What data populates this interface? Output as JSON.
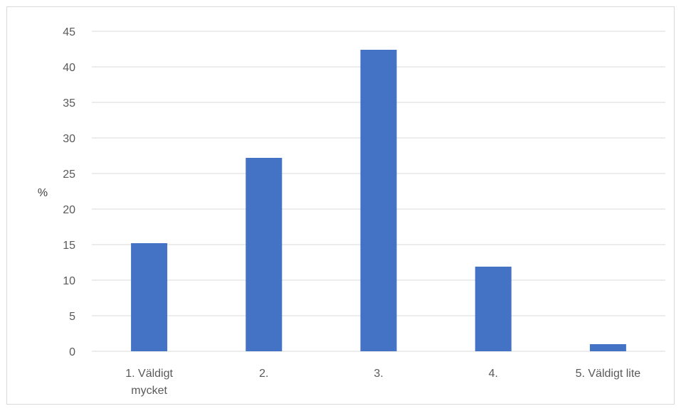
{
  "chart_data": {
    "type": "bar",
    "title": "",
    "xlabel": "",
    "ylabel": "%",
    "categories": [
      [
        "1. Väldigt",
        "mycket"
      ],
      [
        "2."
      ],
      [
        "3."
      ],
      [
        "4."
      ],
      [
        "5. Väldigt lite"
      ]
    ],
    "values": [
      15.2,
      27.2,
      42.4,
      11.9,
      1.0
    ],
    "ylim": [
      0,
      45
    ],
    "yticks": [
      0,
      5,
      10,
      15,
      20,
      25,
      30,
      35,
      40,
      45
    ],
    "grid": true,
    "legend": "none",
    "bar_color": "#4472C4",
    "grid_color": "#d9d9d9"
  }
}
